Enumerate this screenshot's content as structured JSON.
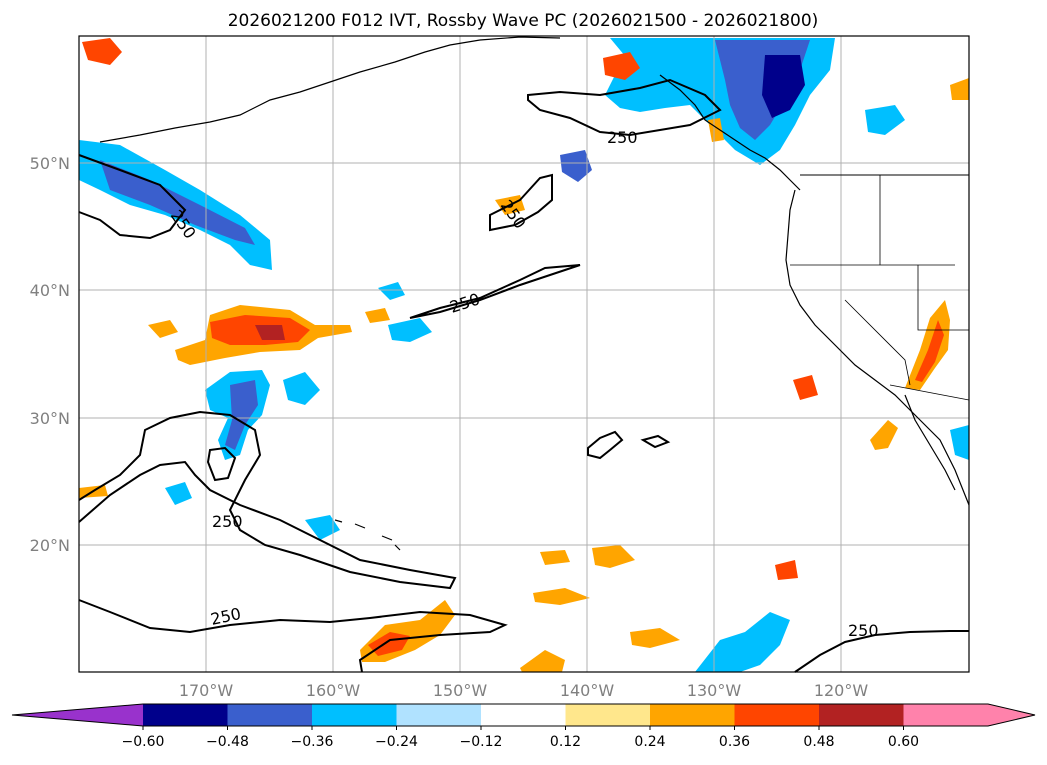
{
  "title": "2026021200 F012 IVT, Rossby Wave PC (2026021500 - 2026021800)",
  "map": {
    "lat_labels": [
      "50°N",
      "40°N",
      "30°N",
      "20°N"
    ],
    "lon_labels": [
      "170°W",
      "160°W",
      "150°W",
      "140°W",
      "130°W",
      "120°W"
    ],
    "contour_labels": [
      "250",
      "250",
      "250",
      "250",
      "250",
      "250"
    ]
  },
  "colorbar": {
    "ticks": [
      "−0.60",
      "−0.48",
      "−0.36",
      "−0.24",
      "−0.12",
      "0.12",
      "0.24",
      "0.36",
      "0.48",
      "0.60"
    ],
    "colors": {
      "under": "#9932CC",
      "neg_060": "#00008B",
      "neg_048": "#3A5FCD",
      "neg_036": "#00BFFF",
      "neg_024": "#B0E2FF",
      "zero": "#FFFFFF",
      "pos_012": "#FFE78C",
      "pos_024": "#FFA500",
      "pos_036": "#FF4500",
      "pos_048": "#B22222",
      "over": "#FF82AB"
    }
  }
}
